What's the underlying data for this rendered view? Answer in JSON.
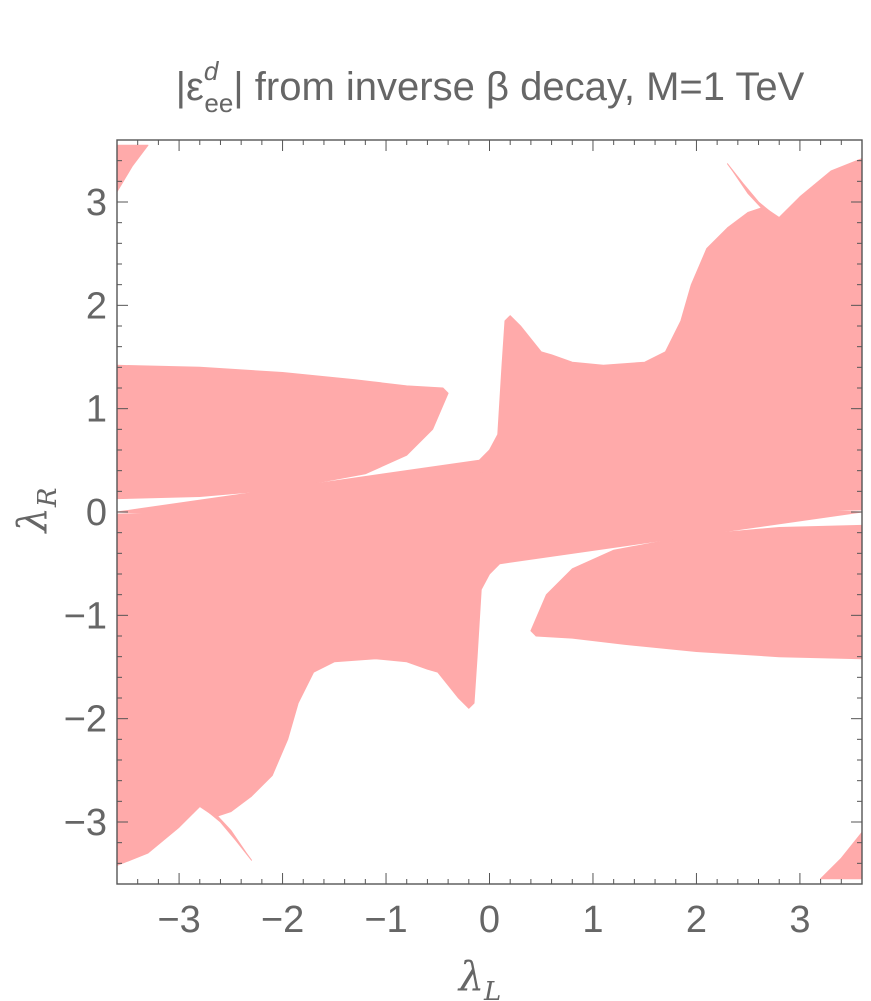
{
  "chart_data": {
    "type": "region",
    "title": {
      "prefix": "|ε",
      "superscript": "d",
      "subscript": "ee",
      "suffix": "| from inverse β decay, M=1 TeV"
    },
    "xlabel": {
      "symbol": "λ",
      "subscript": "L"
    },
    "ylabel": {
      "symbol": "λ",
      "subscript": "R"
    },
    "xlim": [
      -3.6,
      3.6
    ],
    "ylim": [
      -3.6,
      3.6
    ],
    "xticks": [
      -3,
      -2,
      -1,
      0,
      1,
      2,
      3
    ],
    "yticks": [
      -3,
      -2,
      -1,
      0,
      1,
      2,
      3
    ],
    "xtick_labels": [
      "−3",
      "−2",
      "−1",
      "0",
      "1",
      "2",
      "3"
    ],
    "ytick_labels": [
      "−3",
      "−2",
      "−1",
      "0",
      "1",
      "2",
      "3"
    ],
    "fill_color": "#ffaaaa",
    "frame_color": "#555555",
    "grid": false,
    "regions": [
      {
        "name": "top-left-corner",
        "polygon": [
          [
            -3.6,
            3.55
          ],
          [
            -3.3,
            3.55
          ],
          [
            -3.45,
            3.35
          ],
          [
            -3.6,
            3.1
          ]
        ]
      },
      {
        "name": "bottom-right-corner",
        "polygon": [
          [
            3.6,
            -3.55
          ],
          [
            3.2,
            -3.55
          ],
          [
            3.4,
            -3.35
          ],
          [
            3.6,
            -3.1
          ]
        ]
      },
      {
        "name": "upper-left-band",
        "polygon": [
          [
            -3.6,
            1.42
          ],
          [
            -2.8,
            1.4
          ],
          [
            -2,
            1.35
          ],
          [
            -1.3,
            1.28
          ],
          [
            -0.8,
            1.22
          ],
          [
            -0.45,
            1.2
          ],
          [
            -0.4,
            1.15
          ],
          [
            -0.55,
            0.8
          ],
          [
            -0.8,
            0.55
          ],
          [
            -1.2,
            0.37
          ],
          [
            -2,
            0.22
          ],
          [
            -2.8,
            0.15
          ],
          [
            -3.6,
            0.13
          ]
        ]
      },
      {
        "name": "lower-right-band",
        "polygon": [
          [
            3.6,
            -1.42
          ],
          [
            2.8,
            -1.4
          ],
          [
            2,
            -1.35
          ],
          [
            1.3,
            -1.28
          ],
          [
            0.8,
            -1.22
          ],
          [
            0.45,
            -1.2
          ],
          [
            0.4,
            -1.15
          ],
          [
            0.55,
            -0.8
          ],
          [
            0.8,
            -0.55
          ],
          [
            1.2,
            -0.37
          ],
          [
            2,
            -0.22
          ],
          [
            2.8,
            -0.15
          ],
          [
            3.6,
            -0.13
          ]
        ]
      },
      {
        "name": "main-upper-right",
        "polygon": [
          [
            -0.1,
            0.5
          ],
          [
            0,
            0.6
          ],
          [
            0.08,
            0.75
          ],
          [
            0.12,
            1.4
          ],
          [
            0.15,
            1.85
          ],
          [
            0.2,
            1.9
          ],
          [
            0.3,
            1.8
          ],
          [
            0.5,
            1.55
          ],
          [
            0.6,
            1.52
          ],
          [
            0.8,
            1.45
          ],
          [
            1.1,
            1.42
          ],
          [
            1.5,
            1.45
          ],
          [
            1.7,
            1.55
          ],
          [
            1.85,
            1.85
          ],
          [
            1.95,
            2.2
          ],
          [
            2.1,
            2.55
          ],
          [
            2.3,
            2.75
          ],
          [
            2.5,
            2.9
          ],
          [
            2.65,
            2.95
          ],
          [
            2.8,
            2.85
          ],
          [
            3,
            3.05
          ],
          [
            3.3,
            3.3
          ],
          [
            3.6,
            3.42
          ],
          [
            3.6,
            0.02
          ],
          [
            3,
            0.01
          ],
          [
            2,
            -0.05
          ],
          [
            1.4,
            -0.15
          ],
          [
            0.9,
            -0.25
          ],
          [
            0.6,
            -0.3
          ],
          [
            0.3,
            -0.32
          ],
          [
            0,
            -0.4
          ],
          [
            -0.5,
            -0.22
          ],
          [
            -1.5,
            -0.08
          ],
          [
            -3.6,
            0
          ]
        ]
      },
      {
        "name": "main-lower-left",
        "polygon": [
          [
            0.1,
            -0.5
          ],
          [
            0,
            -0.6
          ],
          [
            -0.08,
            -0.75
          ],
          [
            -0.12,
            -1.4
          ],
          [
            -0.15,
            -1.85
          ],
          [
            -0.2,
            -1.9
          ],
          [
            -0.3,
            -1.8
          ],
          [
            -0.5,
            -1.55
          ],
          [
            -0.6,
            -1.52
          ],
          [
            -0.8,
            -1.45
          ],
          [
            -1.1,
            -1.42
          ],
          [
            -1.5,
            -1.45
          ],
          [
            -1.7,
            -1.55
          ],
          [
            -1.85,
            -1.85
          ],
          [
            -1.95,
            -2.2
          ],
          [
            -2.1,
            -2.55
          ],
          [
            -2.3,
            -2.75
          ],
          [
            -2.5,
            -2.9
          ],
          [
            -2.65,
            -2.95
          ],
          [
            -2.8,
            -2.85
          ],
          [
            -3,
            -3.05
          ],
          [
            -3.3,
            -3.3
          ],
          [
            -3.6,
            -3.42
          ],
          [
            -3.6,
            -0.02
          ],
          [
            -3,
            -0.01
          ],
          [
            -2,
            0.05
          ],
          [
            -1.4,
            0.15
          ],
          [
            -0.9,
            0.25
          ],
          [
            -0.6,
            0.3
          ],
          [
            -0.3,
            0.32
          ],
          [
            0,
            0.4
          ],
          [
            0.5,
            0.22
          ],
          [
            1.5,
            0.08
          ],
          [
            3.6,
            0
          ]
        ]
      },
      {
        "name": "spike-top-right",
        "polygon": [
          [
            2.3,
            3.37
          ],
          [
            2.45,
            3.18
          ],
          [
            2.6,
            3
          ],
          [
            2.72,
            2.9
          ],
          [
            2.65,
            2.92
          ],
          [
            2.5,
            3.08
          ],
          [
            2.35,
            3.3
          ]
        ]
      },
      {
        "name": "spike-bottom-left",
        "polygon": [
          [
            -2.3,
            -3.37
          ],
          [
            -2.45,
            -3.18
          ],
          [
            -2.6,
            -3
          ],
          [
            -2.72,
            -2.9
          ],
          [
            -2.65,
            -2.92
          ],
          [
            -2.5,
            -3.08
          ],
          [
            -2.35,
            -3.3
          ]
        ]
      },
      {
        "name": "spike-center-upper",
        "polygon": [
          [
            0.45,
            1.6
          ],
          [
            0.5,
            1.35
          ],
          [
            0.57,
            1.15
          ],
          [
            0.6,
            1.2
          ],
          [
            0.53,
            1.4
          ]
        ]
      },
      {
        "name": "spike-center-lower",
        "polygon": [
          [
            -0.45,
            -1.6
          ],
          [
            -0.5,
            -1.35
          ],
          [
            -0.57,
            -1.15
          ],
          [
            -0.6,
            -1.2
          ],
          [
            -0.53,
            -1.4
          ]
        ]
      }
    ]
  }
}
